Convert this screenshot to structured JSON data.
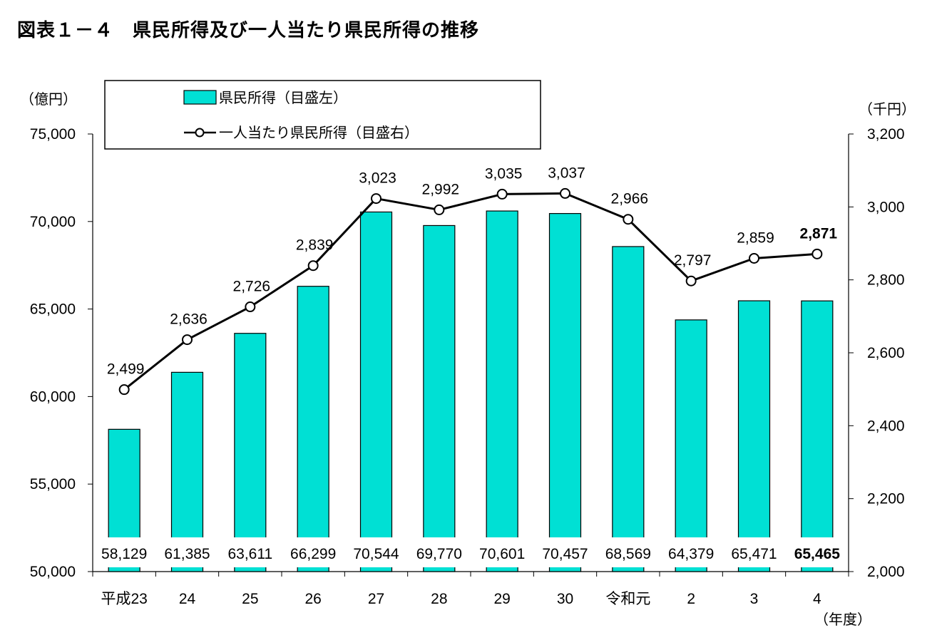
{
  "title": "図表１－４　県民所得及び一人当たり県民所得の推移",
  "colors": {
    "bar": "#00e0d4",
    "bar_stroke": "#000000",
    "line": "#000000",
    "marker_fill": "#ffffff"
  },
  "chart_data": {
    "type": "bar",
    "categories": [
      "平成23",
      "24",
      "25",
      "26",
      "27",
      "28",
      "29",
      "30",
      "令和元",
      "2",
      "3",
      "4"
    ],
    "series": [
      {
        "name": "県民所得（目盛左）",
        "type": "bar",
        "axis": "left",
        "values": [
          58129,
          61385,
          63611,
          66299,
          70544,
          69770,
          70601,
          70457,
          68569,
          64379,
          65471,
          65465
        ],
        "labels": [
          "58,129",
          "61,385",
          "63,611",
          "66,299",
          "70,544",
          "69,770",
          "70,601",
          "70,457",
          "68,569",
          "64,379",
          "65,471",
          "65,465"
        ]
      },
      {
        "name": "一人当たり県民所得（目盛右）",
        "type": "line",
        "axis": "right",
        "values": [
          2499,
          2636,
          2726,
          2839,
          3023,
          2992,
          3035,
          3037,
          2966,
          2797,
          2859,
          2871
        ],
        "labels": [
          "2,499",
          "2,636",
          "2,726",
          "2,839",
          "3,023",
          "2,992",
          "3,035",
          "3,037",
          "2,966",
          "2,797",
          "2,859",
          "2,871"
        ]
      }
    ],
    "y_left": {
      "unit": "（億円）",
      "min": 50000,
      "max": 75000,
      "ticks": [
        50000,
        55000,
        60000,
        65000,
        70000,
        75000
      ],
      "tick_labels": [
        "50,000",
        "55,000",
        "60,000",
        "65,000",
        "70,000",
        "75,000"
      ]
    },
    "y_right": {
      "unit": "（千円）",
      "min": 2000,
      "max": 3200,
      "ticks": [
        2000,
        2200,
        2400,
        2600,
        2800,
        3000,
        3200
      ],
      "tick_labels": [
        "2,000",
        "2,200",
        "2,400",
        "2,600",
        "2,800",
        "3,000",
        "3,200"
      ]
    },
    "xlabel": "（年度）",
    "legend": {
      "position": "top-left",
      "entries": [
        "県民所得（目盛左）",
        "一人当たり県民所得（目盛右）"
      ]
    },
    "emphasis": "last",
    "grid": false
  }
}
